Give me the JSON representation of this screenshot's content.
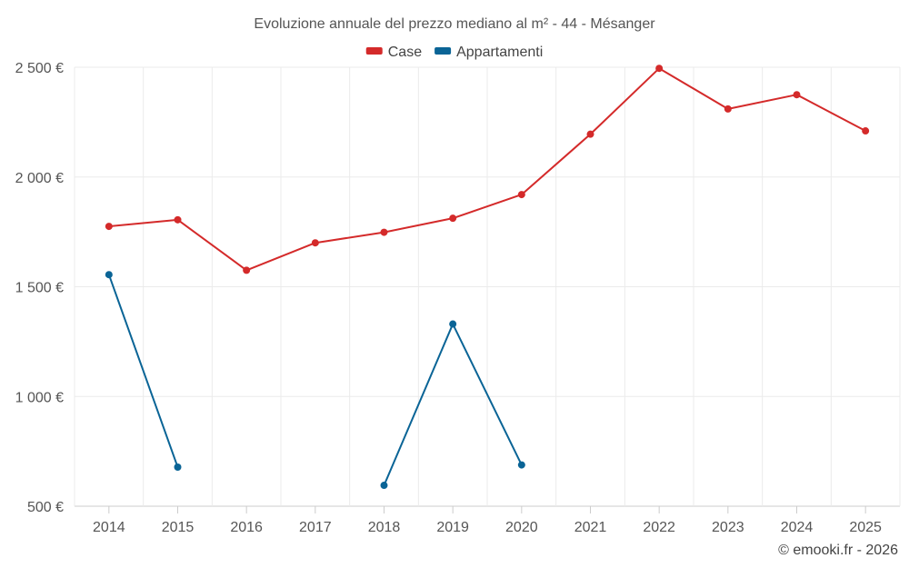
{
  "chart_data": {
    "type": "line",
    "title": "Evoluzione annuale del prezzo mediano al m² - 44 - Mésanger",
    "categories": [
      "2014",
      "2015",
      "2016",
      "2017",
      "2018",
      "2019",
      "2020",
      "2021",
      "2022",
      "2023",
      "2024",
      "2025"
    ],
    "series": [
      {
        "name": "Case",
        "color": "#d42a2a",
        "values": [
          1775,
          1805,
          1575,
          1700,
          1748,
          1812,
          1920,
          2195,
          2495,
          2310,
          2375,
          2210
        ]
      },
      {
        "name": "Appartamenti",
        "color": "#0a6496",
        "values": [
          1555,
          678,
          null,
          null,
          595,
          1330,
          688,
          null,
          null,
          null,
          null,
          null
        ]
      }
    ],
    "y_ticks": [
      500,
      1000,
      1500,
      2000,
      2500
    ],
    "y_tick_labels": [
      "500 €",
      "1 000 €",
      "1 500 €",
      "2 000 €",
      "2 500 €"
    ],
    "ylim": [
      500,
      2500
    ],
    "xlabel": "",
    "ylabel": "",
    "grid": true,
    "legend_position": "top-center"
  },
  "credit": "© emooki.fr - 2026"
}
